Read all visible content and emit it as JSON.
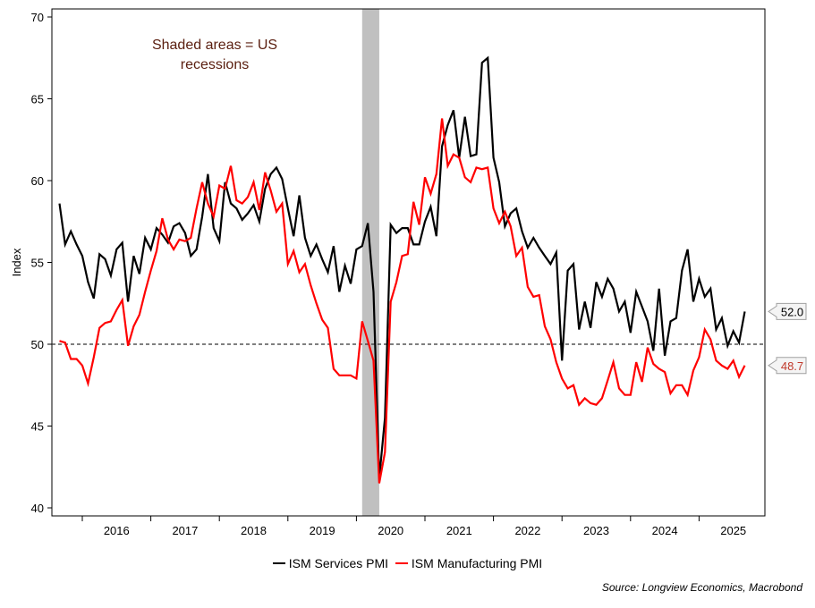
{
  "chart_data": {
    "type": "line",
    "title": "",
    "xlabel": "",
    "ylabel": "Index",
    "ylim": [
      40,
      70
    ],
    "yticks": [
      40,
      45,
      50,
      55,
      60,
      65,
      70
    ],
    "x_start": "2015-09",
    "frequency": "monthly",
    "xtick_labels": [
      "2016",
      "2017",
      "2018",
      "2019",
      "2020",
      "2021",
      "2022",
      "2023",
      "2024",
      "2025"
    ],
    "reference_line": 50,
    "recession_shading": {
      "start": "2020-02",
      "end": "2020-04"
    },
    "annotation": "Shaded areas = US recessions",
    "series": [
      {
        "name": "ISM Services PMI",
        "color": "#000000",
        "last_label": "52.0",
        "values": [
          58.6,
          56.1,
          56.9,
          56.1,
          55.4,
          53.8,
          52.8,
          55.5,
          55.2,
          54.2,
          55.8,
          56.2,
          52.6,
          55.4,
          54.3,
          56.5,
          55.8,
          57.1,
          56.7,
          56.2,
          57.2,
          57.4,
          56.8,
          55.4,
          55.8,
          57.8,
          60.4,
          57.1,
          56.3,
          59.9,
          58.6,
          58.3,
          57.6,
          58.0,
          58.5,
          57.5,
          59.5,
          60.4,
          60.8,
          60.1,
          58.3,
          56.6,
          59.1,
          56.5,
          55.4,
          56.1,
          55.2,
          54.4,
          56.0,
          53.2,
          54.8,
          53.7,
          55.8,
          56.0,
          57.4,
          53.2,
          41.8,
          45.5,
          57.3,
          56.8,
          57.1,
          57.1,
          56.1,
          56.1,
          57.5,
          58.4,
          56.6,
          62.1,
          63.4,
          64.3,
          61.4,
          63.9,
          61.5,
          61.6,
          67.2,
          67.5,
          61.4,
          59.9,
          57.2,
          58.0,
          58.3,
          56.9,
          55.9,
          56.5,
          55.9,
          55.4,
          54.9,
          55.6,
          49.0,
          54.5,
          54.9,
          50.9,
          52.6,
          51.0,
          53.8,
          52.9,
          54.0,
          53.4,
          52.0,
          52.6,
          50.7,
          53.2,
          52.3,
          51.4,
          49.6,
          53.4,
          49.3,
          51.4,
          51.6,
          54.5,
          55.8,
          52.6,
          54.0,
          52.9,
          53.4,
          50.9,
          51.6,
          49.9,
          50.8,
          50.1,
          52.0
        ]
      },
      {
        "name": "ISM Manufacturing PMI",
        "color": "#ff0000",
        "label_color": "#c0392b",
        "last_label": "48.7",
        "values": [
          50.2,
          50.1,
          49.1,
          49.1,
          48.7,
          47.6,
          49.2,
          51.0,
          51.3,
          51.4,
          52.1,
          52.7,
          49.9,
          51.1,
          51.8,
          53.2,
          54.5,
          55.7,
          57.7,
          56.4,
          55.8,
          56.4,
          56.3,
          56.5,
          58.3,
          59.9,
          58.6,
          57.8,
          59.7,
          59.5,
          60.9,
          58.8,
          58.6,
          59.0,
          59.9,
          58.2,
          60.5,
          59.4,
          58.1,
          58.6,
          54.9,
          55.7,
          54.4,
          54.9,
          53.6,
          52.5,
          51.5,
          51.0,
          48.5,
          48.1,
          48.1,
          48.1,
          47.9,
          51.4,
          50.2,
          49.0,
          41.5,
          43.4,
          52.6,
          53.8,
          55.4,
          55.5,
          58.7,
          57.3,
          60.2,
          59.2,
          60.4,
          63.8,
          60.9,
          61.6,
          61.4,
          60.2,
          59.9,
          60.8,
          60.7,
          60.8,
          58.3,
          57.4,
          58.1,
          57.2,
          55.4,
          55.9,
          53.5,
          52.9,
          53.0,
          51.1,
          50.3,
          48.9,
          47.9,
          47.3,
          47.5,
          46.3,
          46.7,
          46.4,
          46.3,
          46.7,
          47.8,
          48.9,
          47.3,
          46.9,
          46.9,
          48.9,
          47.7,
          49.8,
          48.8,
          48.5,
          48.3,
          47.0,
          47.5,
          47.5,
          46.9,
          48.4,
          49.2,
          50.9,
          50.3,
          49.0,
          48.7,
          48.5,
          49.0,
          48.0,
          48.7
        ]
      }
    ],
    "legend_position": "bottom-center",
    "source": "Source: Longview Economics, Macrobond"
  }
}
